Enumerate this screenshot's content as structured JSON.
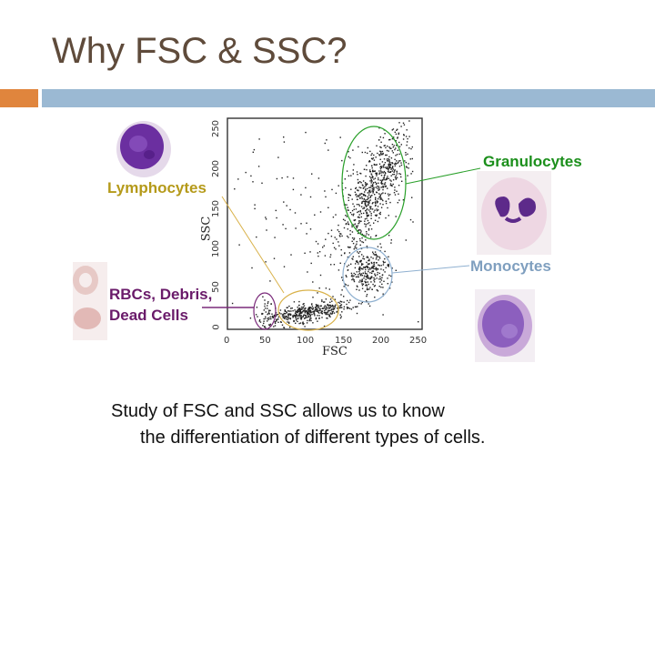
{
  "slide": {
    "title": "Why FSC & SSC?",
    "accent_colors": {
      "orange": "#e0853d",
      "blue": "#9bb9d3",
      "title": "#5f4b3b"
    }
  },
  "plot": {
    "x_axis_label": "FSC",
    "y_axis_label": "SSC",
    "x_ticks": [
      "0",
      "50",
      "100",
      "150",
      "200",
      "250"
    ],
    "y_ticks": [
      "0",
      "50",
      "100",
      "150",
      "200",
      "250"
    ]
  },
  "labels": {
    "granulocytes": "Granulocytes",
    "lymphocytes": "Lymphocytes",
    "monocytes": "Monocytes",
    "rbcs_line1": "RBCs, Debris,",
    "rbcs_line2": "Dead Cells"
  },
  "label_colors": {
    "granulocytes": "#1b8f1b",
    "lymphocytes": "#b59a1a",
    "monocytes": "#7f9fbf",
    "rbcs": "#6a1b6a"
  },
  "caption": {
    "line1": "Study of FSC and SSC allows us to know",
    "line2": "the differentiation of different types of cells."
  }
}
